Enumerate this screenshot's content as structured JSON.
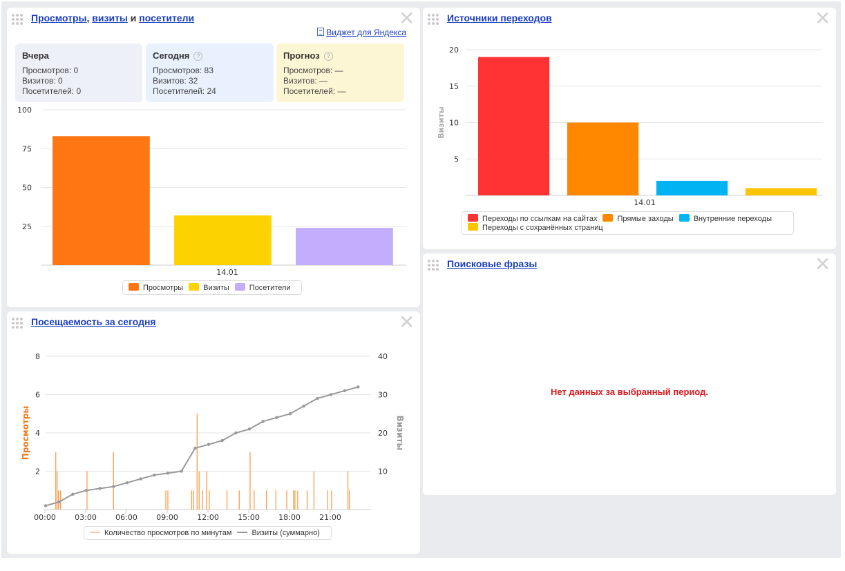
{
  "panels": {
    "traffic": {
      "title_part1": "Просмотры",
      "title_sep1": ",",
      "title_part2": "визиты",
      "title_sep2": "и",
      "title_part3": "посетители",
      "widget_link": "Виджет для Яндекса",
      "boxes": [
        {
          "title": "Вчера",
          "lines": [
            "Просмотров: 0",
            "Визитов: 0",
            "Посетителей: 0"
          ],
          "help": false,
          "color": "#eef0f8"
        },
        {
          "title": "Сегодня",
          "lines": [
            "Просмотров: 83",
            "Визитов: 32",
            "Посетителей: 24"
          ],
          "help": true,
          "color": "#e8f1fd"
        },
        {
          "title": "Прогноз",
          "lines": [
            "Просмотров: —",
            "Визитов: —",
            "Посетителей: —"
          ],
          "help": true,
          "color": "#fdf6d4"
        }
      ],
      "help_glyph": "?"
    },
    "sources": {
      "title": "Источники переходов"
    },
    "phrases": {
      "title": "Поисковые фразы",
      "no_data": "Нет данных за выбранный период."
    },
    "attendance": {
      "title": "Посещаемость за сегодня"
    }
  },
  "icons": {
    "drag": "drag-handle-icon",
    "close": "close-icon",
    "close_glyph": "✕",
    "widget": "document-icon"
  },
  "chart_data": [
    {
      "type": "bar",
      "categories": [
        "14.01"
      ],
      "series": [
        {
          "name": "Просмотры",
          "values": [
            83
          ],
          "color": "#ff7612"
        },
        {
          "name": "Визиты",
          "values": [
            32
          ],
          "color": "#fcd200"
        },
        {
          "name": "Посетители",
          "values": [
            24
          ],
          "color": "#c2aefd"
        }
      ],
      "ylim": [
        0,
        100
      ],
      "yticks": [
        25,
        50,
        75,
        100
      ],
      "grid": true,
      "legend": "bottom"
    },
    {
      "type": "bar",
      "categories": [
        "14.01"
      ],
      "ylabel": "Визиты",
      "series": [
        {
          "name": "Переходы по ссылкам на сайтах",
          "values": [
            19
          ],
          "color": "#ff3333"
        },
        {
          "name": "Прямые заходы",
          "values": [
            10
          ],
          "color": "#ff8800"
        },
        {
          "name": "Внутренние переходы",
          "values": [
            2
          ],
          "color": "#00b3f2"
        },
        {
          "name": "Переходы с сохранённых страниц",
          "values": [
            1
          ],
          "color": "#ffc400"
        }
      ],
      "ylim": [
        0,
        20
      ],
      "yticks": [
        5,
        10,
        15,
        20
      ],
      "grid": true,
      "legend": "bottom"
    },
    {
      "type": "line",
      "ylabel_left": "Просмотры",
      "ylabel_right": "Визиты",
      "ylim_left": [
        0,
        8
      ],
      "ylim_right": [
        0,
        40
      ],
      "yticks_left": [
        2,
        4,
        6,
        8
      ],
      "yticks_right": [
        10,
        20,
        30,
        40
      ],
      "xlim": [
        0,
        24
      ],
      "xticks": [
        0,
        3,
        6,
        9,
        12,
        15,
        18,
        21
      ],
      "xtick_labels": [
        "00:00",
        "03:00",
        "06:00",
        "09:00",
        "12:00",
        "15:00",
        "18:00",
        "21:00"
      ],
      "series": [
        {
          "name": "Количество просмотров по минутам",
          "axis": "left",
          "color": "#ff9b4a",
          "spikes": [
            [
              0.8,
              3
            ],
            [
              0.9,
              2
            ],
            [
              1.0,
              1
            ],
            [
              1.15,
              1
            ],
            [
              3.1,
              2
            ],
            [
              5.05,
              3
            ],
            [
              8.9,
              1
            ],
            [
              9.05,
              1
            ],
            [
              10.8,
              1
            ],
            [
              10.95,
              1
            ],
            [
              11.2,
              5
            ],
            [
              11.35,
              2
            ],
            [
              11.6,
              1
            ],
            [
              11.9,
              2
            ],
            [
              12.1,
              1
            ],
            [
              13.4,
              1
            ],
            [
              14.3,
              1
            ],
            [
              15.1,
              3
            ],
            [
              15.4,
              1
            ],
            [
              16.3,
              1
            ],
            [
              17.0,
              1
            ],
            [
              17.8,
              1
            ],
            [
              18.3,
              1
            ],
            [
              18.4,
              1
            ],
            [
              18.6,
              1
            ],
            [
              19.3,
              1
            ],
            [
              19.8,
              2
            ],
            [
              20.8,
              1
            ],
            [
              21.1,
              1
            ],
            [
              22.3,
              2
            ],
            [
              22.4,
              1
            ]
          ]
        },
        {
          "name": "Визиты (суммарно)",
          "axis": "right",
          "color": "#999999",
          "x": [
            0,
            1,
            2,
            3,
            4,
            5,
            6,
            7,
            8,
            9,
            10,
            11,
            12,
            13,
            14,
            15,
            16,
            17,
            18,
            19,
            20,
            21,
            22,
            23
          ],
          "y": [
            1,
            2,
            4,
            5,
            5.5,
            6,
            7,
            8,
            9,
            9.5,
            10,
            16,
            17,
            18,
            20,
            21,
            23,
            24,
            25,
            27,
            29,
            30,
            31,
            32
          ]
        }
      ],
      "grid": true,
      "legend": "bottom"
    }
  ]
}
